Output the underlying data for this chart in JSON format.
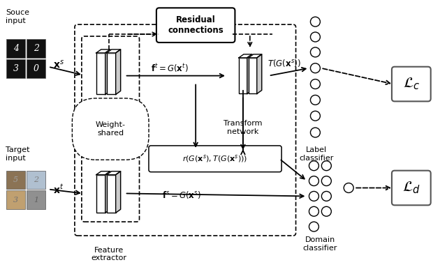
{
  "bg_color": "#ffffff",
  "source_input_label": "Souce\ninput",
  "target_input_label": "Target\ninput",
  "xs_label": "$\\mathbf{x}^s$",
  "xt_label": "$\\mathbf{x}^t$",
  "ft_eq": "$\\mathbf{f}^t = G(\\mathbf{x}^t)$",
  "fs_eq": "$\\mathbf{f}^s = G(\\mathbf{x}^s)$",
  "tg_label": "$T(G(\\mathbf{x}^s))$",
  "r_label": "$r(G(\\mathbf{x}^s), T(G(\\mathbf{x}^s)))$",
  "residual_label": "Residual\nconnections",
  "transform_label": "Transform\nnetwork",
  "weight_shared_label": "Weight-\nshared",
  "feature_extractor_label": "Feature\nextractor",
  "label_classifier_label": "Label\nclassifier",
  "domain_classifier_label": "Domain\nclassifier",
  "lc_label": "$\\mathcal{L}_c$",
  "ld_label": "$\\mathcal{L}_d$",
  "src_digit_colors": [
    "#1a1a1a",
    "#1a1a1a",
    "#1a1a1a",
    "#1a1a1a"
  ],
  "tgt_img_colors": [
    "#8B7355",
    "#b0c4c8",
    "#c8b090",
    "#8090a0"
  ]
}
